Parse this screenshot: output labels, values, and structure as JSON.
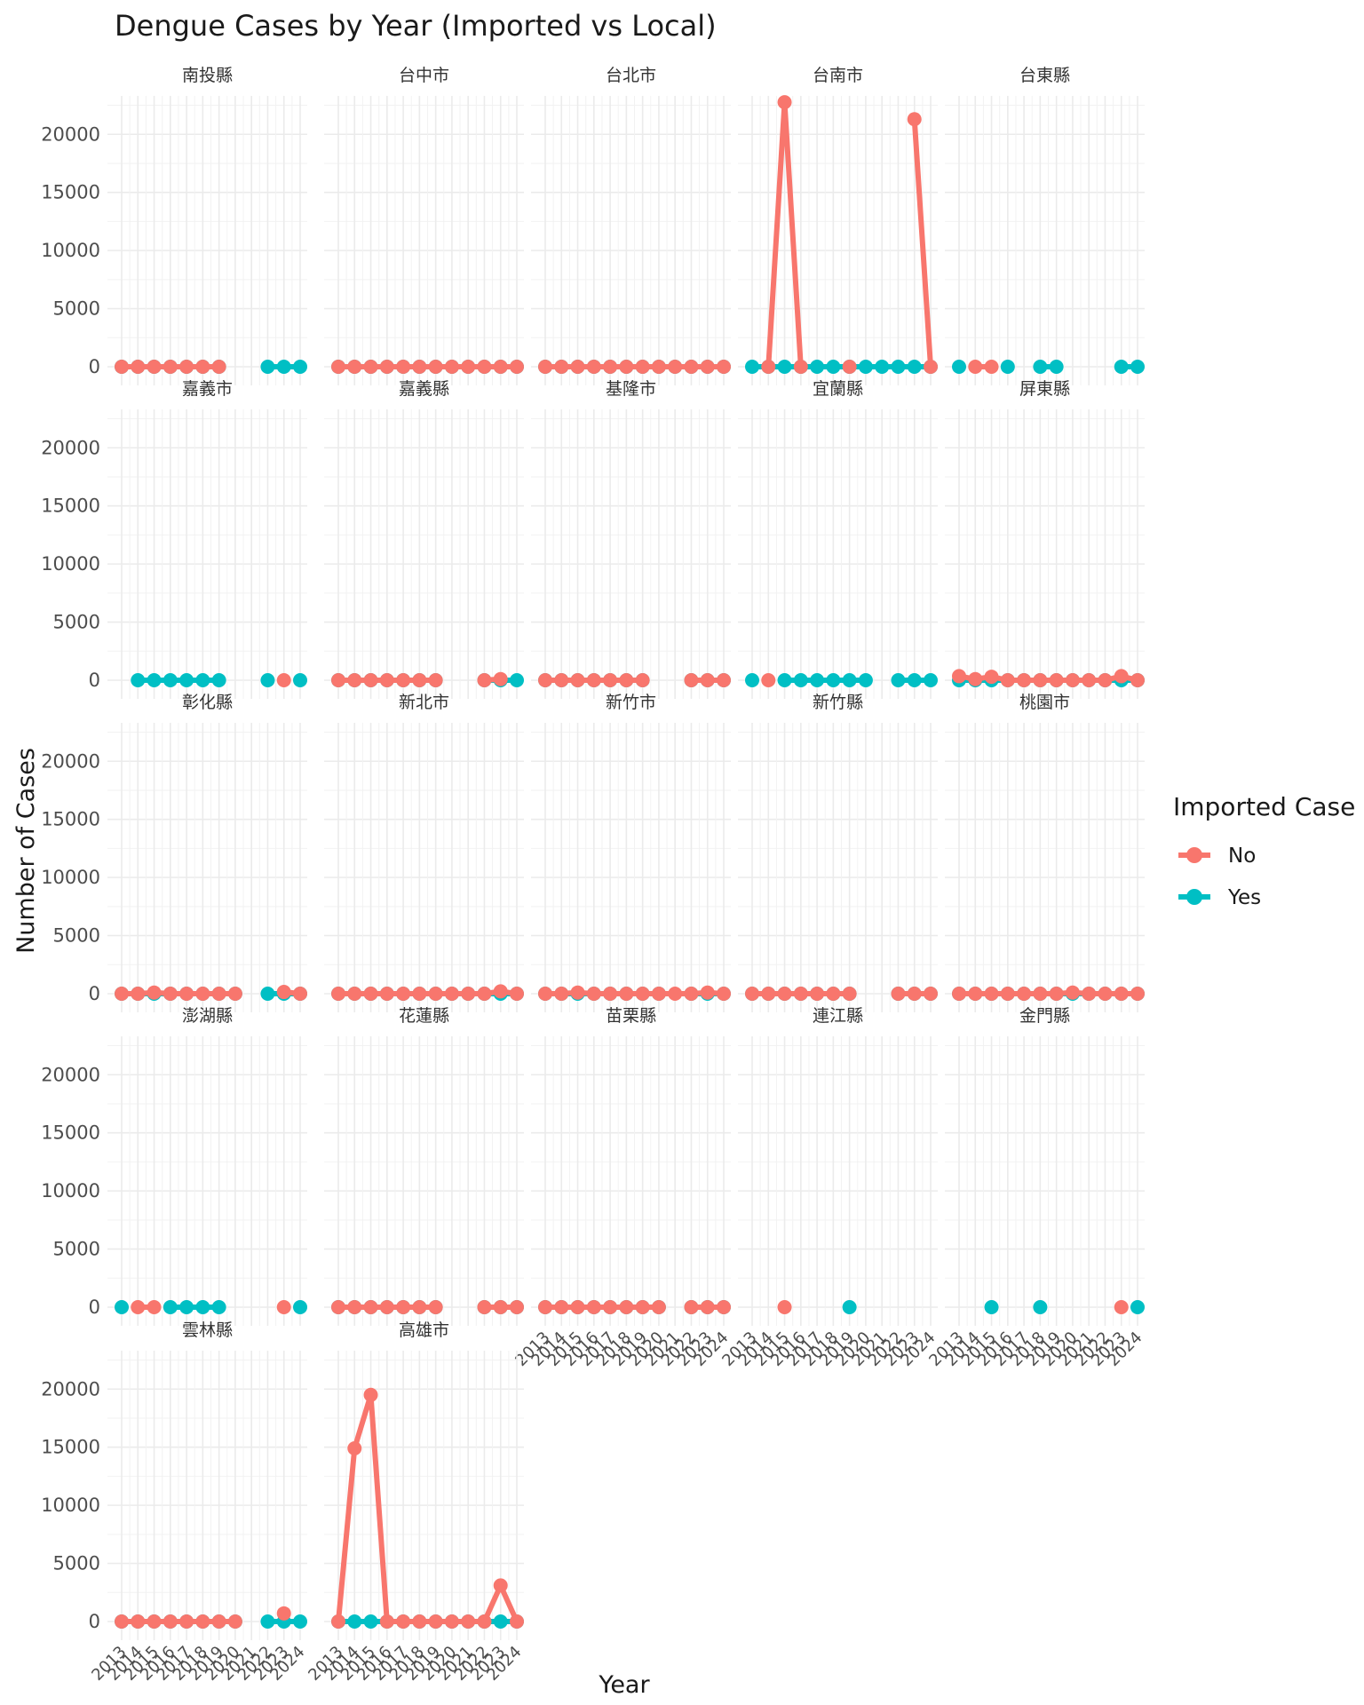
{
  "chart_data": {
    "type": "line",
    "title": "Dengue Cases by Year (Imported vs Local)",
    "xlabel": "Year",
    "ylabel": "Number of Cases",
    "x": [
      2013,
      2014,
      2015,
      2016,
      2017,
      2018,
      2019,
      2020,
      2021,
      2022,
      2023,
      2024
    ],
    "x_tick_labels": [
      "2013",
      "2014",
      "2015",
      "2016",
      "2017",
      "2018",
      "2019",
      "2020",
      "2021",
      "2022",
      "2023",
      "2024"
    ],
    "ylim": [
      0,
      23000
    ],
    "y_ticks": [
      0,
      5000,
      10000,
      15000,
      20000
    ],
    "y_tick_labels": [
      "0",
      "5000",
      "10000",
      "15000",
      "20000"
    ],
    "grid": true,
    "legend": {
      "title": "Imported Case",
      "position": "right",
      "entries": [
        {
          "label": "No",
          "color": "#F8766D"
        },
        {
          "label": "Yes",
          "color": "#00BFC4"
        }
      ]
    },
    "panels": [
      {
        "name": "南投縣",
        "series": [
          {
            "name": "No",
            "values": [
              0,
              0,
              0,
              0,
              0,
              0,
              0,
              null,
              null,
              null,
              null,
              null
            ]
          },
          {
            "name": "Yes",
            "values": [
              0,
              0,
              0,
              0,
              0,
              0,
              0,
              null,
              null,
              0,
              0,
              0
            ]
          }
        ]
      },
      {
        "name": "台中市",
        "series": [
          {
            "name": "No",
            "values": [
              0,
              0,
              0,
              0,
              0,
              0,
              0,
              0,
              0,
              0,
              0,
              0
            ]
          },
          {
            "name": "Yes",
            "values": [
              0,
              0,
              0,
              0,
              0,
              0,
              0,
              0,
              0,
              0,
              0,
              0
            ]
          }
        ]
      },
      {
        "name": "台北市",
        "series": [
          {
            "name": "No",
            "values": [
              0,
              0,
              0,
              0,
              0,
              0,
              0,
              0,
              0,
              0,
              0,
              0
            ]
          },
          {
            "name": "Yes",
            "values": [
              0,
              0,
              0,
              0,
              0,
              0,
              0,
              0,
              0,
              0,
              0,
              0
            ]
          }
        ]
      },
      {
        "name": "台南市",
        "series": [
          {
            "name": "No",
            "values": [
              null,
              0,
              22760,
              0,
              null,
              null,
              0,
              null,
              null,
              null,
              21300,
              0
            ]
          },
          {
            "name": "Yes",
            "values": [
              0,
              0,
              0,
              0,
              0,
              0,
              0,
              0,
              0,
              0,
              0,
              0
            ]
          }
        ]
      },
      {
        "name": "台東縣",
        "series": [
          {
            "name": "No",
            "values": [
              null,
              0,
              0,
              null,
              null,
              null,
              null,
              null,
              null,
              null,
              null,
              null
            ]
          },
          {
            "name": "Yes",
            "values": [
              0,
              null,
              null,
              0,
              null,
              0,
              0,
              null,
              null,
              null,
              0,
              0
            ]
          }
        ]
      },
      {
        "name": "嘉義市",
        "series": [
          {
            "name": "No",
            "values": [
              null,
              null,
              null,
              null,
              null,
              null,
              null,
              null,
              null,
              null,
              0,
              null
            ]
          },
          {
            "name": "Yes",
            "values": [
              null,
              0,
              0,
              0,
              0,
              0,
              0,
              null,
              null,
              0,
              null,
              0
            ]
          }
        ]
      },
      {
        "name": "嘉義縣",
        "series": [
          {
            "name": "No",
            "values": [
              0,
              0,
              0,
              0,
              0,
              0,
              0,
              null,
              null,
              0,
              100,
              null
            ]
          },
          {
            "name": "Yes",
            "values": [
              0,
              0,
              0,
              0,
              0,
              0,
              0,
              null,
              null,
              0,
              0,
              0
            ]
          }
        ]
      },
      {
        "name": "基隆市",
        "series": [
          {
            "name": "No",
            "values": [
              0,
              0,
              0,
              0,
              0,
              0,
              0,
              null,
              null,
              0,
              0,
              0
            ]
          },
          {
            "name": "Yes",
            "values": [
              0,
              0,
              0,
              0,
              0,
              0,
              0,
              null,
              null,
              0,
              0,
              0
            ]
          }
        ]
      },
      {
        "name": "宜蘭縣",
        "series": [
          {
            "name": "No",
            "values": [
              null,
              0,
              null,
              null,
              null,
              null,
              null,
              null,
              null,
              null,
              null,
              null
            ]
          },
          {
            "name": "Yes",
            "values": [
              0,
              null,
              0,
              0,
              0,
              0,
              0,
              0,
              null,
              0,
              0,
              0
            ]
          }
        ]
      },
      {
        "name": "屏東縣",
        "series": [
          {
            "name": "No",
            "values": [
              350,
              100,
              300,
              0,
              0,
              0,
              0,
              0,
              0,
              0,
              350,
              0
            ]
          },
          {
            "name": "Yes",
            "values": [
              0,
              0,
              0,
              0,
              0,
              0,
              0,
              0,
              0,
              0,
              0,
              0
            ]
          }
        ]
      },
      {
        "name": "彰化縣",
        "series": [
          {
            "name": "No",
            "values": [
              0,
              0,
              100,
              0,
              0,
              0,
              0,
              0,
              null,
              null,
              150,
              0
            ]
          },
          {
            "name": "Yes",
            "values": [
              0,
              0,
              0,
              0,
              0,
              0,
              0,
              0,
              null,
              0,
              0,
              0
            ]
          }
        ]
      },
      {
        "name": "新北市",
        "series": [
          {
            "name": "No",
            "values": [
              0,
              0,
              0,
              0,
              0,
              0,
              0,
              0,
              0,
              0,
              200,
              0
            ]
          },
          {
            "name": "Yes",
            "values": [
              0,
              0,
              0,
              0,
              0,
              0,
              0,
              0,
              0,
              0,
              0,
              0
            ]
          }
        ]
      },
      {
        "name": "新竹市",
        "series": [
          {
            "name": "No",
            "values": [
              0,
              0,
              100,
              0,
              0,
              0,
              0,
              0,
              0,
              0,
              100,
              0
            ]
          },
          {
            "name": "Yes",
            "values": [
              0,
              0,
              0,
              0,
              0,
              0,
              0,
              0,
              null,
              0,
              0,
              0
            ]
          }
        ]
      },
      {
        "name": "新竹縣",
        "series": [
          {
            "name": "No",
            "values": [
              0,
              0,
              0,
              0,
              0,
              0,
              0,
              null,
              null,
              0,
              0,
              0
            ]
          },
          {
            "name": "Yes",
            "values": [
              0,
              0,
              0,
              0,
              0,
              0,
              0,
              null,
              null,
              0,
              0,
              0
            ]
          }
        ]
      },
      {
        "name": "桃園市",
        "series": [
          {
            "name": "No",
            "values": [
              0,
              0,
              0,
              0,
              0,
              0,
              0,
              100,
              0,
              0,
              0,
              0
            ]
          },
          {
            "name": "Yes",
            "values": [
              0,
              0,
              0,
              0,
              0,
              0,
              0,
              0,
              0,
              0,
              0,
              0
            ]
          }
        ]
      },
      {
        "name": "澎湖縣",
        "series": [
          {
            "name": "No",
            "values": [
              null,
              0,
              0,
              null,
              null,
              null,
              null,
              null,
              null,
              null,
              0,
              null
            ]
          },
          {
            "name": "Yes",
            "values": [
              0,
              null,
              null,
              0,
              0,
              0,
              0,
              null,
              null,
              null,
              null,
              0
            ]
          }
        ]
      },
      {
        "name": "花蓮縣",
        "series": [
          {
            "name": "No",
            "values": [
              0,
              0,
              0,
              0,
              0,
              0,
              0,
              null,
              null,
              0,
              0,
              0
            ]
          },
          {
            "name": "Yes",
            "values": [
              0,
              0,
              0,
              0,
              0,
              0,
              0,
              null,
              null,
              0,
              0,
              0
            ]
          }
        ]
      },
      {
        "name": "苗栗縣",
        "series": [
          {
            "name": "No",
            "values": [
              0,
              0,
              0,
              0,
              0,
              0,
              0,
              0,
              null,
              0,
              0,
              0
            ]
          },
          {
            "name": "Yes",
            "values": [
              0,
              0,
              0,
              0,
              0,
              0,
              0,
              0,
              null,
              0,
              0,
              0
            ]
          }
        ]
      },
      {
        "name": "連江縣",
        "series": [
          {
            "name": "No",
            "values": [
              null,
              null,
              0,
              null,
              null,
              null,
              null,
              null,
              null,
              null,
              null,
              null
            ]
          },
          {
            "name": "Yes",
            "values": [
              null,
              null,
              null,
              null,
              null,
              null,
              0,
              null,
              null,
              null,
              null,
              null
            ]
          }
        ]
      },
      {
        "name": "金門縣",
        "series": [
          {
            "name": "No",
            "values": [
              null,
              null,
              null,
              null,
              null,
              null,
              null,
              null,
              null,
              null,
              0,
              null
            ]
          },
          {
            "name": "Yes",
            "values": [
              null,
              null,
              0,
              null,
              null,
              0,
              null,
              null,
              null,
              null,
              null,
              0
            ]
          }
        ]
      },
      {
        "name": "雲林縣",
        "series": [
          {
            "name": "No",
            "values": [
              0,
              0,
              0,
              0,
              0,
              0,
              0,
              0,
              null,
              null,
              700,
              null
            ]
          },
          {
            "name": "Yes",
            "values": [
              0,
              0,
              0,
              0,
              0,
              0,
              0,
              0,
              null,
              0,
              0,
              0
            ]
          }
        ]
      },
      {
        "name": "高雄市",
        "series": [
          {
            "name": "No",
            "values": [
              0,
              14900,
              19500,
              0,
              0,
              0,
              0,
              0,
              0,
              0,
              3100,
              0
            ]
          },
          {
            "name": "Yes",
            "values": [
              0,
              0,
              0,
              0,
              0,
              0,
              0,
              0,
              0,
              0,
              0,
              0
            ]
          }
        ]
      }
    ]
  }
}
